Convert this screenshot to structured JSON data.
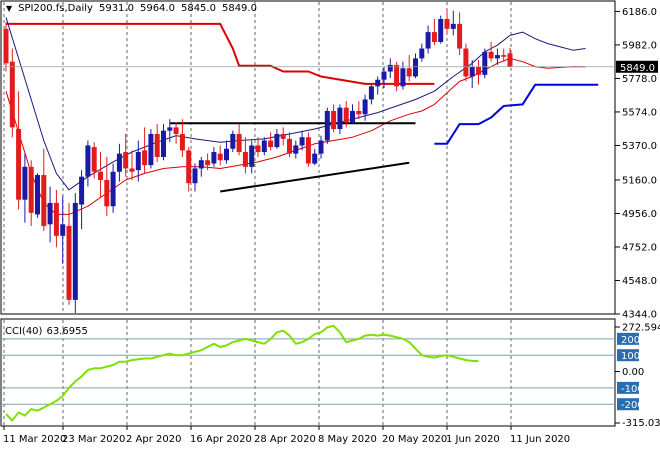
{
  "header": {
    "symbol": "SPI200.fs,Daily",
    "ohlc": [
      "5931.0",
      "5964.0",
      "5845.0",
      "5849.0"
    ]
  },
  "cci_panel": {
    "label": "CCI(40)",
    "value": "63.6955"
  },
  "colors": {
    "bull": "#1a1aa6",
    "bear": "#e31b1b",
    "cci": "#7fe000",
    "channel_upper": "#dd0000",
    "channel_lower": "#0000dd",
    "level_line": "#7fa0b0"
  },
  "chart_data": [
    {
      "type": "candlestick",
      "title": "SPI200.fs,Daily",
      "x_tick_labels": [
        "11 Mar 2020",
        "23 Mar 2020",
        "2 Apr 2020",
        "16 Apr 2020",
        "28 Apr 2020",
        "8 May 2020",
        "20 May 2020",
        "1 Jun 2020",
        "11 Jun 2020"
      ],
      "y_tick_labels": [
        "6186.0",
        "5982.0",
        "5778.0",
        "5574.0",
        "5370.0",
        "5160.0",
        "4956.0",
        "4752.0",
        "4548.0",
        "4344.0"
      ],
      "ylim": [
        4344,
        6225
      ],
      "last_price_label": "5849.0",
      "candles_ohlc": [
        [
          6080,
          6120,
          5820,
          5870
        ],
        [
          5880,
          5960,
          5420,
          5480
        ],
        [
          5470,
          5700,
          4980,
          5040
        ],
        [
          5040,
          5320,
          4900,
          5240
        ],
        [
          5240,
          5280,
          4880,
          4960
        ],
        [
          4950,
          5200,
          4930,
          5190
        ],
        [
          5190,
          5350,
          4850,
          4880
        ],
        [
          4890,
          5120,
          4780,
          5020
        ],
        [
          5020,
          5100,
          4750,
          4820
        ],
        [
          4820,
          5060,
          4650,
          4890
        ],
        [
          4880,
          5020,
          4400,
          4430
        ],
        [
          4430,
          5080,
          4350,
          5020
        ],
        [
          5010,
          5220,
          4860,
          5180
        ],
        [
          5180,
          5400,
          5120,
          5370
        ],
        [
          5360,
          5390,
          5170,
          5210
        ],
        [
          5210,
          5330,
          5050,
          5160
        ],
        [
          5160,
          5300,
          4940,
          5000
        ],
        [
          5000,
          5260,
          4960,
          5210
        ],
        [
          5210,
          5380,
          5150,
          5320
        ],
        [
          5330,
          5440,
          5180,
          5230
        ],
        [
          5230,
          5340,
          5160,
          5210
        ],
        [
          5220,
          5400,
          5150,
          5330
        ],
        [
          5340,
          5480,
          5200,
          5250
        ],
        [
          5250,
          5470,
          5230,
          5440
        ],
        [
          5440,
          5500,
          5270,
          5300
        ],
        [
          5300,
          5500,
          5280,
          5460
        ],
        [
          5460,
          5530,
          5390,
          5480
        ],
        [
          5480,
          5510,
          5380,
          5440
        ],
        [
          5440,
          5530,
          5300,
          5340
        ],
        [
          5340,
          5360,
          5090,
          5140
        ],
        [
          5140,
          5260,
          5090,
          5230
        ],
        [
          5230,
          5300,
          5180,
          5280
        ],
        [
          5280,
          5320,
          5220,
          5250
        ],
        [
          5260,
          5360,
          5240,
          5330
        ],
        [
          5320,
          5370,
          5250,
          5280
        ],
        [
          5280,
          5400,
          5260,
          5350
        ],
        [
          5350,
          5460,
          5330,
          5440
        ],
        [
          5440,
          5500,
          5310,
          5330
        ],
        [
          5330,
          5420,
          5200,
          5240
        ],
        [
          5240,
          5400,
          5200,
          5370
        ],
        [
          5370,
          5420,
          5300,
          5330
        ],
        [
          5330,
          5420,
          5310,
          5400
        ],
        [
          5400,
          5450,
          5340,
          5360
        ],
        [
          5360,
          5470,
          5350,
          5440
        ],
        [
          5440,
          5480,
          5370,
          5410
        ],
        [
          5410,
          5450,
          5300,
          5320
        ],
        [
          5320,
          5400,
          5290,
          5370
        ],
        [
          5370,
          5460,
          5340,
          5420
        ],
        [
          5420,
          5450,
          5240,
          5260
        ],
        [
          5260,
          5350,
          5250,
          5320
        ],
        [
          5320,
          5430,
          5290,
          5400
        ],
        [
          5400,
          5600,
          5380,
          5580
        ],
        [
          5580,
          5620,
          5450,
          5470
        ],
        [
          5470,
          5620,
          5440,
          5600
        ],
        [
          5600,
          5640,
          5480,
          5510
        ],
        [
          5510,
          5620,
          5500,
          5580
        ],
        [
          5580,
          5640,
          5530,
          5560
        ],
        [
          5560,
          5680,
          5520,
          5650
        ],
        [
          5650,
          5740,
          5620,
          5730
        ],
        [
          5730,
          5790,
          5680,
          5770
        ],
        [
          5770,
          5850,
          5720,
          5820
        ],
        [
          5820,
          5900,
          5780,
          5860
        ],
        [
          5860,
          5880,
          5700,
          5730
        ],
        [
          5730,
          5880,
          5710,
          5840
        ],
        [
          5840,
          5920,
          5760,
          5790
        ],
        [
          5790,
          5930,
          5780,
          5900
        ],
        [
          5900,
          5990,
          5880,
          5960
        ],
        [
          5960,
          6100,
          5930,
          6060
        ],
        [
          6060,
          6140,
          5980,
          6000
        ],
        [
          6000,
          6160,
          5990,
          6140
        ],
        [
          6140,
          6200,
          6050,
          6080
        ],
        [
          6080,
          6190,
          6040,
          6110
        ],
        [
          6110,
          6180,
          5920,
          5960
        ],
        [
          5960,
          5990,
          5760,
          5790
        ],
        [
          5790,
          5890,
          5720,
          5850
        ],
        [
          5850,
          5890,
          5740,
          5800
        ],
        [
          5800,
          5960,
          5780,
          5940
        ],
        [
          5940,
          6000,
          5880,
          5900
        ],
        [
          5900,
          5960,
          5860,
          5920
        ],
        [
          5920,
          5960,
          5880,
          5910
        ],
        [
          5931,
          5964,
          5845,
          5849
        ]
      ],
      "overlays": {
        "channel_upper": [
          [
            0,
            6110
          ],
          [
            34,
            6110
          ],
          [
            36,
            5960
          ],
          [
            37,
            5855
          ],
          [
            42,
            5855
          ],
          [
            44,
            5820
          ],
          [
            48,
            5820
          ],
          [
            50,
            5790
          ],
          [
            57,
            5745
          ],
          [
            68,
            5745
          ]
        ],
        "channel_lower": [
          [
            68,
            5380
          ],
          [
            70,
            5380
          ],
          [
            72,
            5500
          ],
          [
            75,
            5500
          ],
          [
            77,
            5540
          ],
          [
            79,
            5610
          ],
          [
            82,
            5620
          ],
          [
            84,
            5740
          ],
          [
            94,
            5740
          ]
        ],
        "moving_average": [
          [
            0,
            6150
          ],
          [
            2,
            5900
          ],
          [
            4,
            5650
          ],
          [
            6,
            5400
          ],
          [
            8,
            5200
          ],
          [
            10,
            5100
          ],
          [
            13,
            5180
          ],
          [
            17,
            5270
          ],
          [
            20,
            5330
          ],
          [
            24,
            5390
          ],
          [
            27,
            5430
          ],
          [
            30,
            5410
          ],
          [
            34,
            5390
          ],
          [
            37,
            5400
          ],
          [
            41,
            5410
          ],
          [
            45,
            5440
          ],
          [
            49,
            5470
          ],
          [
            53,
            5510
          ],
          [
            56,
            5540
          ],
          [
            59,
            5570
          ],
          [
            62,
            5610
          ],
          [
            65,
            5650
          ],
          [
            68,
            5700
          ],
          [
            71,
            5790
          ],
          [
            74,
            5870
          ],
          [
            76,
            5940
          ],
          [
            78,
            5980
          ],
          [
            80,
            6040
          ],
          [
            82,
            6060
          ],
          [
            84,
            6020
          ],
          [
            86,
            5990
          ],
          [
            88,
            5970
          ],
          [
            90,
            5950
          ],
          [
            92,
            5960
          ]
        ],
        "envelope": [
          [
            0,
            5700
          ],
          [
            2,
            5450
          ],
          [
            4,
            5200
          ],
          [
            6,
            5020
          ],
          [
            8,
            4950
          ],
          [
            10,
            4950
          ],
          [
            13,
            5000
          ],
          [
            16,
            5080
          ],
          [
            19,
            5160
          ],
          [
            22,
            5200
          ],
          [
            25,
            5230
          ],
          [
            28,
            5240
          ],
          [
            31,
            5240
          ],
          [
            34,
            5230
          ],
          [
            37,
            5250
          ],
          [
            40,
            5270
          ],
          [
            43,
            5300
          ],
          [
            46,
            5340
          ],
          [
            49,
            5380
          ],
          [
            52,
            5400
          ],
          [
            55,
            5420
          ],
          [
            58,
            5460
          ],
          [
            61,
            5520
          ],
          [
            64,
            5560
          ],
          [
            66,
            5580
          ],
          [
            68,
            5620
          ],
          [
            70,
            5690
          ],
          [
            72,
            5760
          ],
          [
            74,
            5790
          ],
          [
            76,
            5830
          ],
          [
            78,
            5870
          ],
          [
            80,
            5900
          ],
          [
            82,
            5880
          ],
          [
            84,
            5850
          ],
          [
            86,
            5840
          ],
          [
            88,
            5845
          ],
          [
            90,
            5850
          ],
          [
            92,
            5849
          ]
        ],
        "trendline_upper": [
          [
            26,
            5505
          ],
          [
            65,
            5505
          ]
        ],
        "trendline_lower": [
          [
            34,
            5090
          ],
          [
            64,
            5265
          ]
        ]
      }
    },
    {
      "type": "line",
      "title": "CCI(40) 63.6955",
      "y_tick_labels": [
        "272.5944",
        "200",
        "100",
        "0.00",
        "-100",
        "-200",
        "-315.0300"
      ],
      "ylim": [
        -315.03,
        272.5944
      ],
      "levels": [
        200,
        100,
        -100,
        -200
      ],
      "values": [
        -260,
        -300,
        -250,
        -270,
        -230,
        -240,
        -220,
        -200,
        -180,
        -150,
        -100,
        -60,
        -30,
        10,
        20,
        20,
        30,
        40,
        60,
        60,
        70,
        75,
        80,
        80,
        90,
        100,
        110,
        100,
        100,
        110,
        120,
        130,
        150,
        170,
        150,
        160,
        180,
        190,
        200,
        190,
        180,
        170,
        200,
        240,
        250,
        220,
        170,
        180,
        200,
        230,
        240,
        270,
        280,
        240,
        180,
        190,
        200,
        220,
        225,
        220,
        225,
        220,
        210,
        200,
        180,
        140,
        100,
        90,
        85,
        95,
        100,
        90,
        80,
        70,
        65,
        64
      ]
    }
  ]
}
